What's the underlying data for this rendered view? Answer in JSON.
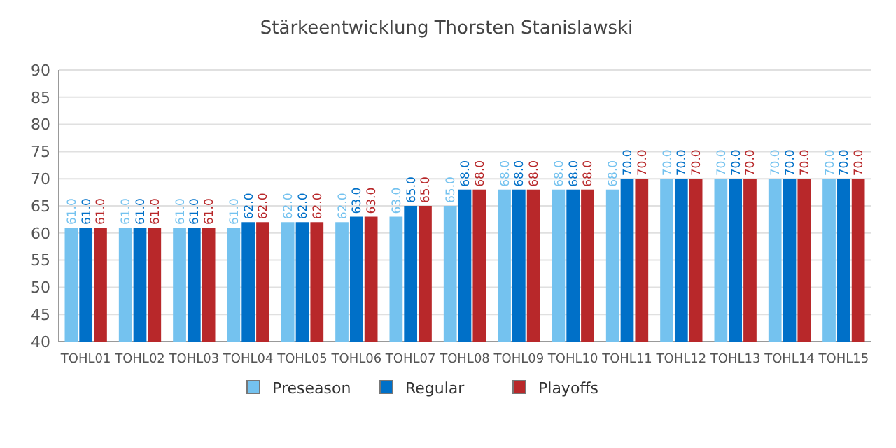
{
  "chart_data": {
    "type": "bar",
    "title": "Stärkeentwicklung Thorsten Stanislawski",
    "categories": [
      "TOHL01",
      "TOHL02",
      "TOHL03",
      "TOHL04",
      "TOHL05",
      "TOHL06",
      "TOHL07",
      "TOHL08",
      "TOHL09",
      "TOHL10",
      "TOHL11",
      "TOHL12",
      "TOHL13",
      "TOHL14",
      "TOHL15"
    ],
    "series": [
      {
        "name": "Preseason",
        "color": "#74c2ef",
        "values": [
          61,
          61,
          61,
          61,
          62,
          62,
          63,
          65,
          68,
          68,
          68,
          70,
          70,
          70,
          70
        ],
        "value_labels": [
          "61.0",
          "61.0",
          "61.0",
          "61.0",
          "62.0",
          "62.0",
          "63.0",
          "65.0",
          "68.0",
          "68.0",
          "68.0",
          "70.0",
          "70.0",
          "70.0",
          "70.0"
        ]
      },
      {
        "name": "Regular",
        "color": "#0070c8",
        "values": [
          61,
          61,
          61,
          62,
          62,
          63,
          65,
          68,
          68,
          68,
          70,
          70,
          70,
          70,
          70
        ],
        "value_labels": [
          "61.0",
          "61.0",
          "61.0",
          "62.0",
          "62.0",
          "63.0",
          "65.0",
          "68.0",
          "68.0",
          "68.0",
          "70.0",
          "70.0",
          "70.0",
          "70.0",
          "70.0"
        ]
      },
      {
        "name": "Playoffs",
        "color": "#b8282a",
        "values": [
          61,
          61,
          61,
          62,
          62,
          63,
          65,
          68,
          68,
          68,
          70,
          70,
          70,
          70,
          70
        ],
        "value_labels": [
          "61.0",
          "61.0",
          "61.0",
          "62.0",
          "62.0",
          "63.0",
          "65.0",
          "68.0",
          "68.0",
          "68.0",
          "70.0",
          "70.0",
          "70.0",
          "70.0",
          "70.0"
        ]
      }
    ],
    "ylim": [
      40,
      90
    ],
    "yticks": [
      40,
      45,
      50,
      55,
      60,
      65,
      70,
      75,
      80,
      85,
      90
    ],
    "grid": "y",
    "legend": "bottom"
  }
}
